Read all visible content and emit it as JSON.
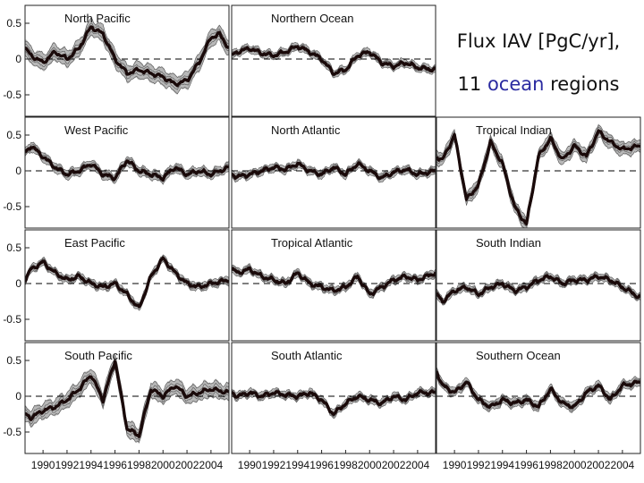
{
  "title": {
    "line1": "Flux IAV [PgC/yr],",
    "line2_prefix": "11",
    "line2_highlight": "ocean",
    "line2_suffix": "regions",
    "highlight_color": "#2a2aa0"
  },
  "colors": {
    "line": "#1a0a0a",
    "envelope": "#b8b8b8",
    "envelope_line": "#555555",
    "zero": "#000000"
  },
  "chart_data": {
    "type": "line",
    "xlabel": "",
    "ylabel": "",
    "xlim": [
      1988.5,
      2005.5
    ],
    "ylim": [
      -0.8,
      0.75
    ],
    "x_ticks": [
      1990,
      1992,
      1994,
      1996,
      1998,
      2000,
      2002,
      2004
    ],
    "x_tick_labels": [
      "1990",
      "1992",
      "1994",
      "1996",
      "1998",
      "2000",
      "2002",
      "2004"
    ],
    "y_ticks": [
      0.5,
      0,
      -0.5
    ],
    "y_tick_labels": [
      "0.5",
      "0",
      "-0.5"
    ],
    "panels": [
      {
        "name": "North Pacific",
        "row": 0,
        "col": 0,
        "x": [
          1988.5,
          1989,
          1990,
          1991,
          1992,
          1993,
          1994,
          1995,
          1996,
          1997,
          1998,
          1999,
          2000,
          2001,
          2002,
          2003,
          2004,
          2004.7,
          2005.5
        ],
        "y": [
          0.15,
          0.05,
          -0.05,
          0.1,
          0.0,
          0.15,
          0.45,
          0.35,
          0.0,
          -0.2,
          -0.15,
          -0.2,
          -0.25,
          -0.35,
          -0.3,
          -0.05,
          0.3,
          0.35,
          0.15
        ],
        "spread": 0.12
      },
      {
        "name": "Northern Ocean",
        "row": 0,
        "col": 1,
        "x": [
          1988.5,
          1989,
          1990,
          1991,
          1992,
          1993,
          1994,
          1995,
          1996,
          1997,
          1998,
          1999,
          2000,
          2001,
          2002,
          2003,
          2004,
          2005.5
        ],
        "y": [
          0.05,
          0.1,
          0.15,
          0.08,
          0.05,
          0.1,
          0.18,
          0.1,
          0.0,
          -0.2,
          -0.15,
          0.05,
          0.1,
          -0.05,
          -0.1,
          -0.05,
          -0.12,
          -0.15
        ],
        "spread": 0.06
      },
      {
        "name": "West Pacific",
        "row": 1,
        "col": 0,
        "x": [
          1988.5,
          1989,
          1990,
          1991,
          1992,
          1993,
          1994,
          1995,
          1996,
          1997,
          1998,
          1999,
          2000,
          2001,
          2002,
          2003,
          2004,
          2005.5
        ],
        "y": [
          0.25,
          0.35,
          0.2,
          0.05,
          -0.05,
          0.0,
          0.1,
          -0.05,
          -0.1,
          0.15,
          0.0,
          -0.05,
          -0.1,
          0.05,
          -0.05,
          0.0,
          -0.05,
          0.05
        ],
        "spread": 0.07
      },
      {
        "name": "North Atlantic",
        "row": 1,
        "col": 1,
        "x": [
          1988.5,
          1989,
          1990,
          1991,
          1992,
          1993,
          1994,
          1995,
          1996,
          1997,
          1998,
          1999,
          2000,
          2001,
          2002,
          2003,
          2004,
          2005.5
        ],
        "y": [
          -0.05,
          -0.08,
          -0.05,
          0.0,
          0.05,
          0.02,
          0.1,
          0.0,
          -0.05,
          0.05,
          -0.05,
          0.1,
          0.0,
          -0.1,
          -0.02,
          0.02,
          -0.05,
          0.0
        ],
        "spread": 0.06
      },
      {
        "name": "Tropical Indian",
        "row": 1,
        "col": 2,
        "x": [
          1988.5,
          1989,
          1990,
          1991,
          1992,
          1993,
          1994,
          1995,
          1996,
          1997,
          1998,
          1999,
          2000,
          2001,
          2002,
          2003,
          2004,
          2005.5
        ],
        "y": [
          0.2,
          0.15,
          0.5,
          -0.4,
          -0.2,
          0.4,
          0.1,
          -0.5,
          -0.75,
          0.2,
          0.45,
          0.15,
          0.35,
          0.2,
          0.55,
          0.4,
          0.3,
          0.35
        ],
        "spread": 0.1
      },
      {
        "name": "East Pacific",
        "row": 2,
        "col": 0,
        "x": [
          1988.5,
          1989,
          1990,
          1991,
          1992,
          1993,
          1994,
          1995,
          1996,
          1997,
          1998,
          1999,
          2000,
          2001,
          2002,
          2003,
          2004,
          2005.5
        ],
        "y": [
          0.05,
          0.2,
          0.3,
          0.15,
          0.05,
          0.1,
          0.0,
          -0.05,
          0.0,
          -0.15,
          -0.35,
          0.1,
          0.35,
          0.15,
          0.0,
          -0.05,
          0.0,
          0.05
        ],
        "spread": 0.06
      },
      {
        "name": "Tropical Atlantic",
        "row": 2,
        "col": 1,
        "x": [
          1988.5,
          1989,
          1990,
          1991,
          1992,
          1993,
          1994,
          1995,
          1996,
          1997,
          1998,
          1999,
          2000,
          2001,
          2002,
          2003,
          2004,
          2005.5
        ],
        "y": [
          0.2,
          0.15,
          0.2,
          0.1,
          0.05,
          0.0,
          0.15,
          0.0,
          -0.05,
          -0.1,
          -0.05,
          0.1,
          -0.15,
          -0.05,
          0.05,
          0.1,
          0.05,
          0.15
        ],
        "spread": 0.06
      },
      {
        "name": "South Indian",
        "row": 2,
        "col": 2,
        "x": [
          1988.5,
          1989,
          1990,
          1991,
          1992,
          1993,
          1994,
          1995,
          1996,
          1997,
          1998,
          1999,
          2000,
          2001,
          2002,
          2003,
          2004,
          2005.5
        ],
        "y": [
          -0.15,
          -0.25,
          -0.1,
          -0.05,
          -0.15,
          -0.05,
          0.0,
          -0.1,
          -0.05,
          0.05,
          0.1,
          0.0,
          0.05,
          0.05,
          0.1,
          0.05,
          -0.05,
          -0.2
        ],
        "spread": 0.06
      },
      {
        "name": "South Pacific",
        "row": 3,
        "col": 0,
        "x": [
          1988.5,
          1989,
          1990,
          1991,
          1992,
          1993,
          1994,
          1995,
          1996,
          1997,
          1998,
          1999,
          2000,
          2001,
          2002,
          2003,
          2004,
          2005.5
        ],
        "y": [
          -0.25,
          -0.3,
          -0.2,
          -0.15,
          -0.05,
          0.1,
          0.3,
          -0.05,
          0.5,
          -0.45,
          -0.55,
          0.1,
          0.0,
          0.15,
          0.0,
          0.05,
          0.1,
          0.05
        ],
        "spread": 0.12
      },
      {
        "name": "South Atlantic",
        "row": 3,
        "col": 1,
        "x": [
          1988.5,
          1989,
          1990,
          1991,
          1992,
          1993,
          1994,
          1995,
          1996,
          1997,
          1998,
          1999,
          2000,
          2001,
          2002,
          2003,
          2004,
          2005.5
        ],
        "y": [
          0.05,
          0.0,
          0.05,
          0.0,
          0.05,
          0.02,
          0.0,
          0.05,
          -0.05,
          -0.25,
          -0.1,
          0.0,
          -0.05,
          -0.1,
          0.0,
          -0.05,
          0.05,
          0.05
        ],
        "spread": 0.06
      },
      {
        "name": "Southern Ocean",
        "row": 3,
        "col": 2,
        "x": [
          1988.5,
          1989,
          1990,
          1991,
          1992,
          1993,
          1994,
          1995,
          1996,
          1997,
          1998,
          1999,
          2000,
          2001,
          2002,
          2003,
          2004,
          2005.5
        ],
        "y": [
          0.35,
          0.15,
          0.05,
          0.2,
          -0.05,
          -0.15,
          -0.05,
          -0.1,
          -0.05,
          -0.15,
          0.1,
          -0.1,
          -0.15,
          0.05,
          0.15,
          -0.05,
          0.15,
          0.2
        ],
        "spread": 0.07
      }
    ]
  }
}
